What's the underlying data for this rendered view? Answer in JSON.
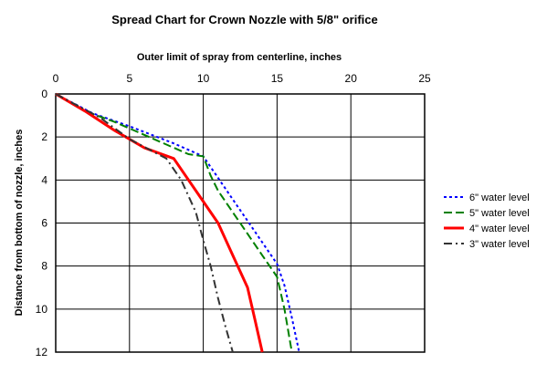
{
  "chart_data": {
    "type": "line",
    "title": "Spread Chart for Crown Nozzle with 5/8\" orifice",
    "xlabel": "Outer limit of spray from centerline, inches",
    "ylabel": "Distance from bottom of nozzle, inches",
    "xlim": [
      0,
      25
    ],
    "ylim": [
      0,
      12
    ],
    "x_axis_position": "top",
    "y_axis_inverted": true,
    "grid": true,
    "legend_position": "right",
    "x_ticks": [
      "0",
      "5",
      "10",
      "15",
      "20",
      "25"
    ],
    "y_ticks": [
      "0",
      "2",
      "4",
      "6",
      "8",
      "10",
      "12"
    ],
    "series": [
      {
        "name": "6\" water level",
        "color": "#0000ff",
        "style": "dotted",
        "x": [
          0,
          2.5,
          5,
          8,
          10,
          11,
          12,
          13,
          14,
          15,
          15.5,
          16,
          16.5
        ],
        "y": [
          0,
          0.9,
          1.5,
          2.3,
          2.9,
          3.9,
          4.9,
          5.9,
          6.9,
          7.9,
          8.9,
          10.4,
          12
        ]
      },
      {
        "name": "5\" water level",
        "color": "#008000",
        "style": "dashed",
        "x": [
          0,
          2,
          4,
          7,
          9,
          10,
          10.5,
          11,
          12,
          13,
          14,
          15,
          15.5,
          16
        ],
        "y": [
          0,
          0.8,
          1.3,
          2.2,
          2.8,
          2.9,
          3.8,
          4.5,
          5.5,
          6.5,
          7.5,
          8.5,
          10,
          12
        ]
      },
      {
        "name": "4\" water level",
        "color": "#ff0000",
        "style": "solid",
        "x": [
          0,
          2,
          4,
          6,
          8,
          10,
          11,
          12,
          13,
          13.5,
          14
        ],
        "y": [
          0,
          0.8,
          1.7,
          2.5,
          3,
          5,
          6,
          7.5,
          9,
          10.5,
          12
        ]
      },
      {
        "name": "3\" water level",
        "color": "#333333",
        "style": "dashdot",
        "x": [
          0,
          3,
          5,
          7.5,
          8.5,
          9.5,
          10,
          10.5,
          11,
          11.5,
          12
        ],
        "y": [
          0,
          1.1,
          2.1,
          3,
          4,
          5.5,
          6.8,
          8,
          9.5,
          10.8,
          12
        ]
      }
    ]
  }
}
